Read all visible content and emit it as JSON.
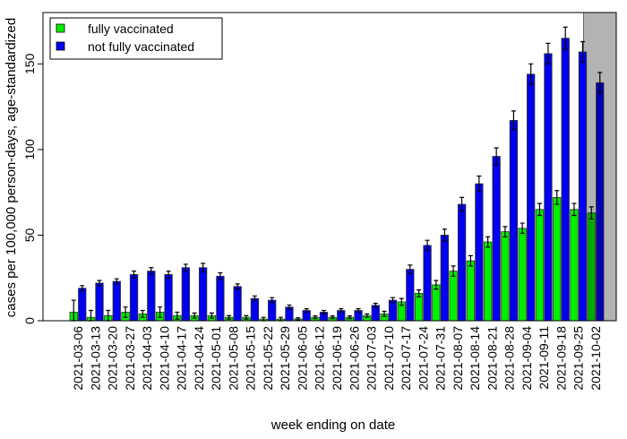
{
  "chart_data": {
    "type": "bar",
    "xlabel": "week ending on date",
    "ylabel": "cases per 100,000 person-days, age-standardized",
    "ylim": [
      0,
      180
    ],
    "yticks": [
      0,
      50,
      100,
      150
    ],
    "grid": false,
    "legend_position": "top-left",
    "shaded_last_category": true,
    "colors": {
      "fully vaccinated": "#00ee00",
      "not fully vaccinated": "#0000ee",
      "shade": "#b3b3b3"
    },
    "categories": [
      "2021-03-06",
      "2021-03-13",
      "2021-03-20",
      "2021-03-27",
      "2021-04-03",
      "2021-04-10",
      "2021-04-17",
      "2021-04-24",
      "2021-05-01",
      "2021-05-08",
      "2021-05-15",
      "2021-05-22",
      "2021-05-29",
      "2021-06-05",
      "2021-06-12",
      "2021-06-19",
      "2021-06-26",
      "2021-07-03",
      "2021-07-10",
      "2021-07-17",
      "2021-07-24",
      "2021-07-31",
      "2021-08-07",
      "2021-08-14",
      "2021-08-21",
      "2021-08-28",
      "2021-09-04",
      "2021-09-11",
      "2021-09-18",
      "2021-09-25",
      "2021-10-02"
    ],
    "series": [
      {
        "name": "fully vaccinated",
        "values": [
          5,
          2,
          3,
          5,
          4,
          5,
          3,
          3,
          3,
          2,
          2,
          1,
          1,
          1,
          2,
          2,
          2,
          3,
          4,
          11,
          16,
          21,
          29,
          35,
          46,
          52,
          54,
          65,
          72,
          65,
          63
        ],
        "error": [
          7,
          4,
          3,
          3,
          2,
          3,
          2,
          1.5,
          1.5,
          1,
          1,
          1,
          1,
          0.7,
          0.8,
          0.8,
          0.8,
          1,
          1.5,
          2,
          2,
          2.5,
          3,
          3,
          3,
          3,
          3,
          3.5,
          4,
          3.5,
          3.5
        ]
      },
      {
        "name": "not fully vaccinated",
        "values": [
          19,
          22,
          23,
          27,
          29,
          27,
          31,
          31,
          26,
          20,
          13,
          12,
          8,
          6,
          5,
          6,
          6,
          9,
          12,
          30,
          44,
          50,
          68,
          80,
          96,
          117,
          144,
          156,
          165,
          157,
          139
        ],
        "error": [
          1.5,
          1.5,
          1.5,
          2,
          2,
          2,
          2,
          2.5,
          2,
          1.5,
          1.5,
          1.5,
          1.2,
          1,
          1,
          1,
          1,
          1.2,
          1.5,
          2.5,
          3,
          3.5,
          4,
          4.5,
          5,
          5.5,
          6,
          6,
          6.5,
          6,
          6
        ]
      }
    ]
  }
}
